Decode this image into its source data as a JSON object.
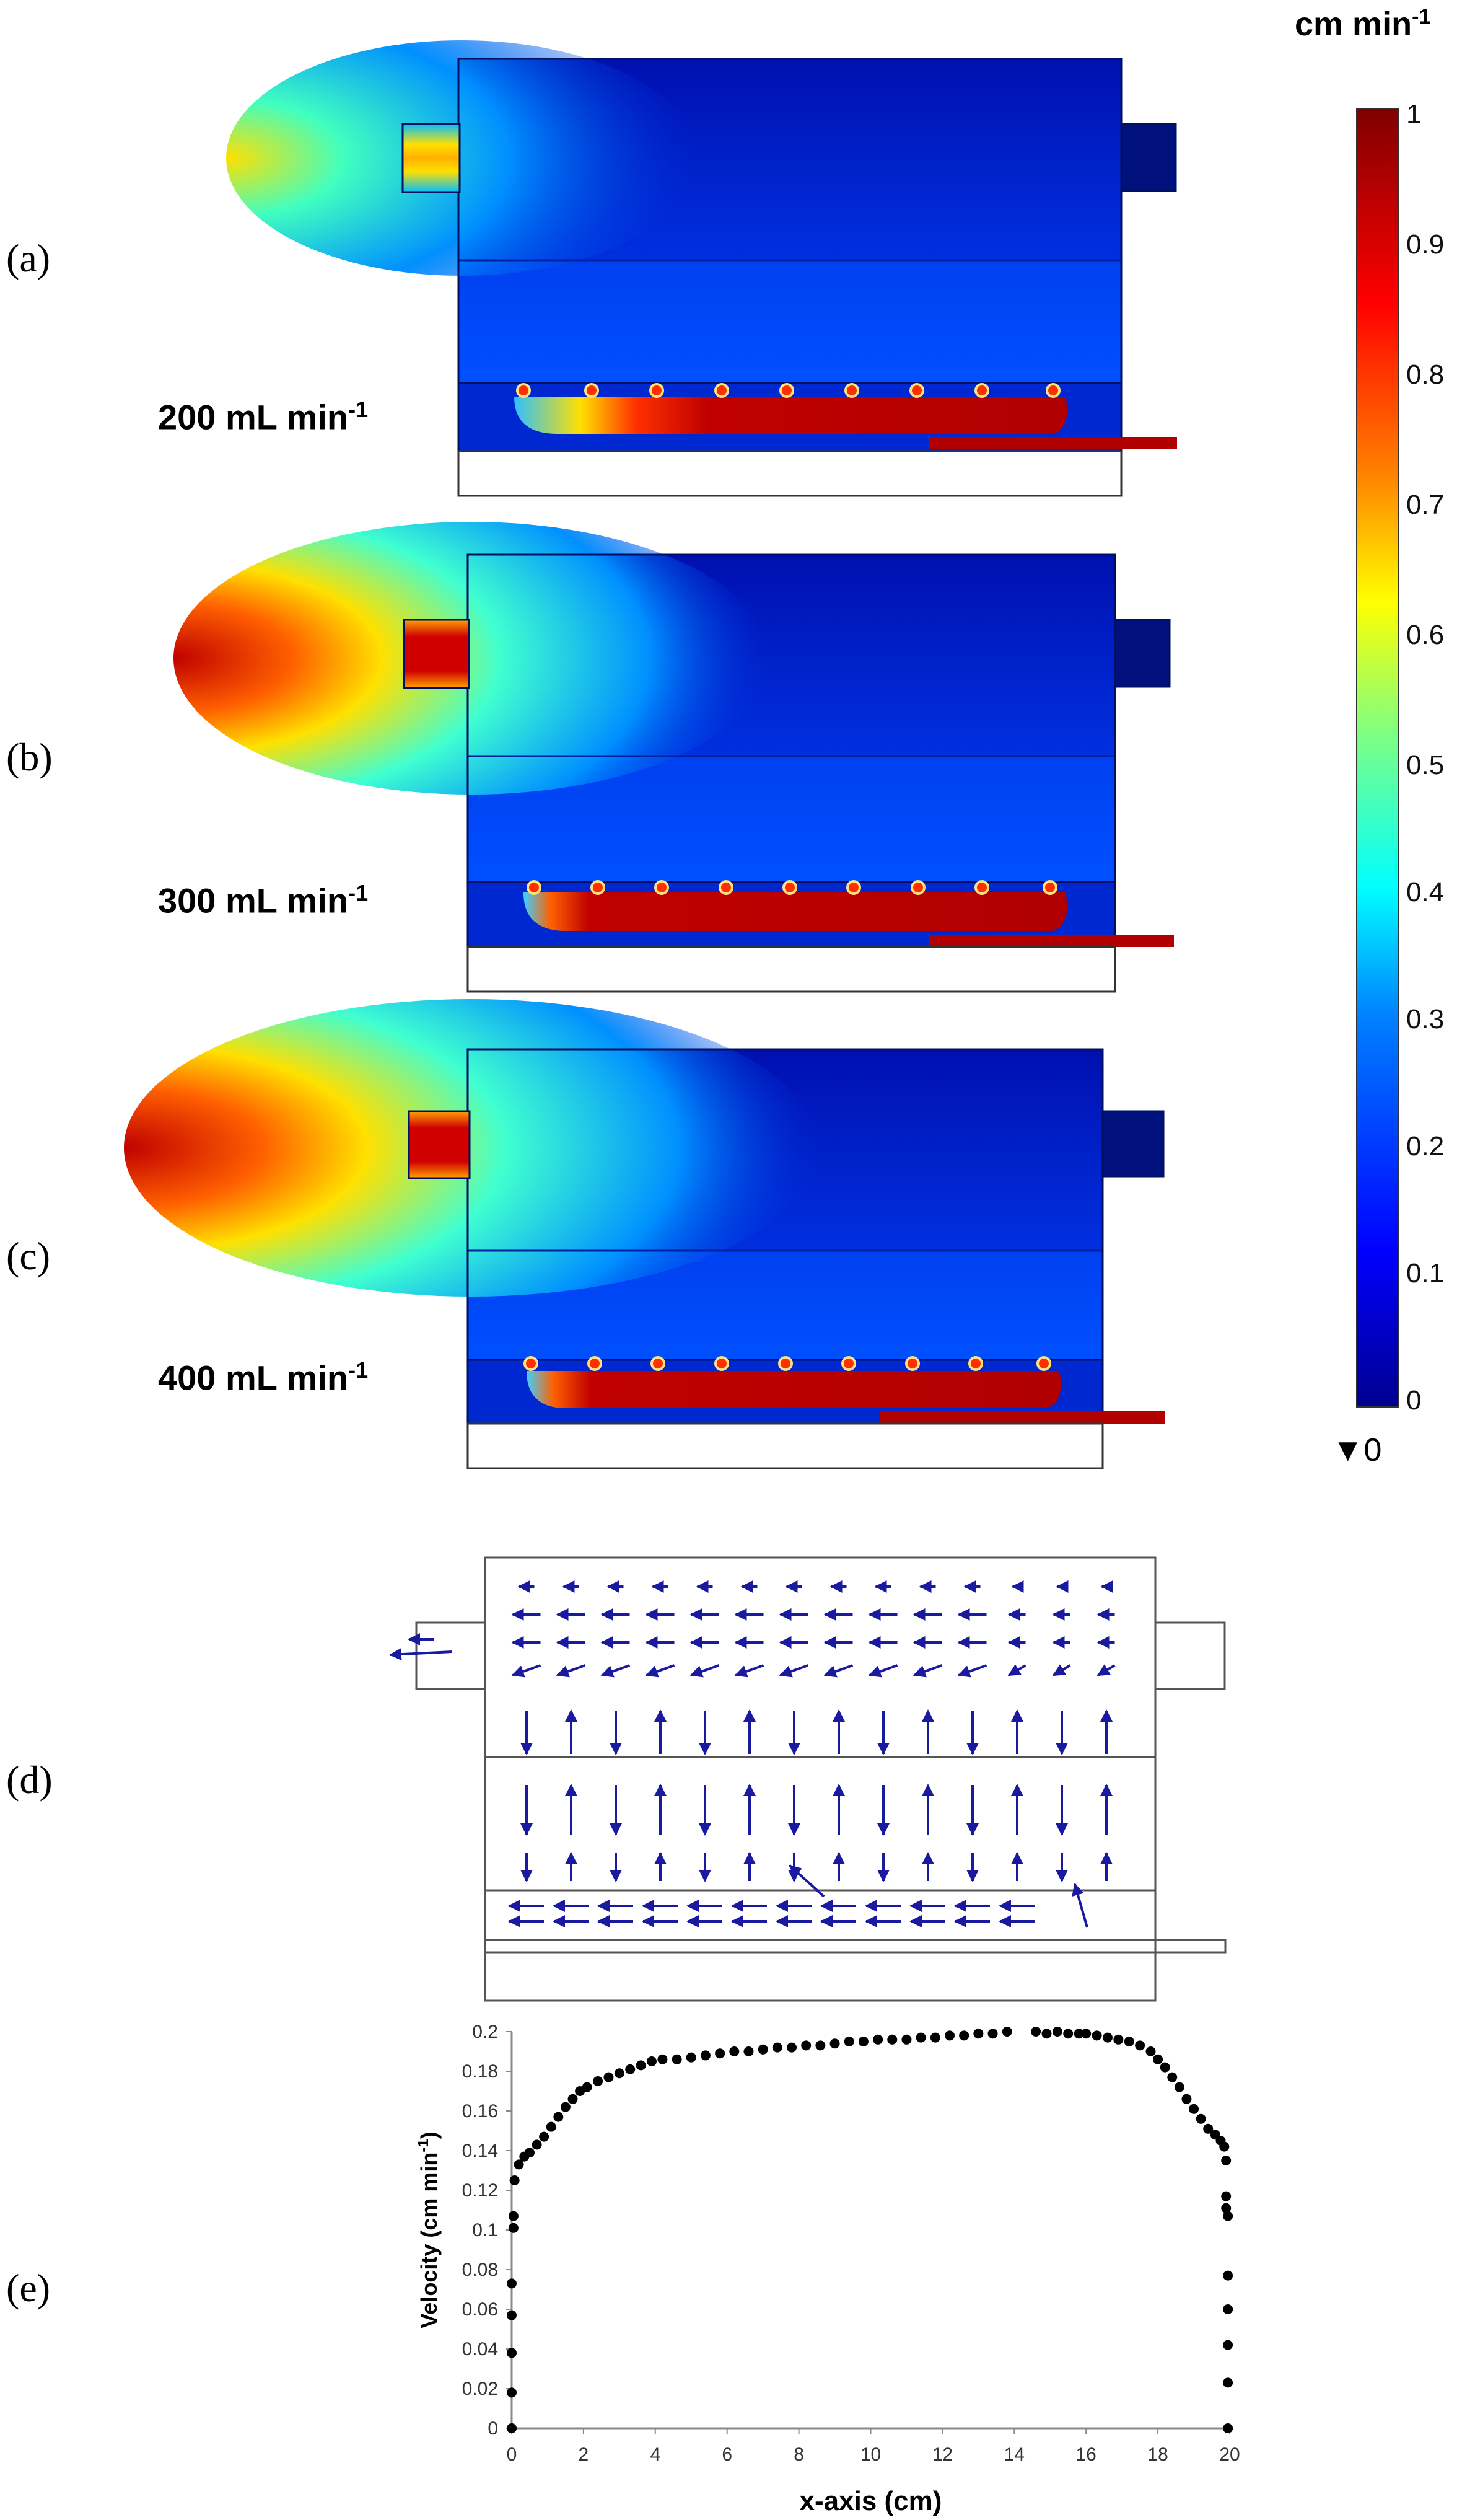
{
  "panel_letters": [
    "(a)",
    "(b)",
    "(c)",
    "(d)",
    "(e)"
  ],
  "flow_labels": [
    {
      "value": "200 mL min",
      "exp": "-1"
    },
    {
      "value": "300 mL min",
      "exp": "-1"
    },
    {
      "value": "400 mL min",
      "exp": "-1"
    }
  ],
  "colorbar": {
    "title": "cm min",
    "title_exp": "-1",
    "min": 0,
    "max": 1,
    "ticks": [
      "1",
      "0.9",
      "0.8",
      "0.7",
      "0.6",
      "0.5",
      "0.4",
      "0.3",
      "0.2",
      "0.1",
      "0"
    ],
    "min_marker": "▼0",
    "colors": [
      "#00008f",
      "#0000ff",
      "#0080ff",
      "#00ffff",
      "#80ff80",
      "#ffff00",
      "#ff8000",
      "#ff0000",
      "#800000"
    ]
  },
  "vector_field": {
    "arrow_color": "#1a1aa0"
  },
  "chart_data": {
    "type": "scatter",
    "xlabel": "x-axis (cm)",
    "ylabel": "Velocity (cm min",
    "ylabel_exp": "-1",
    "ylabel_close": ")",
    "xlim": [
      0,
      20
    ],
    "ylim": [
      0,
      0.2
    ],
    "xticks": [
      0,
      2,
      4,
      6,
      8,
      10,
      12,
      14,
      16,
      18,
      20
    ],
    "yticks": [
      0,
      0.02,
      0.04,
      0.06,
      0.08,
      0.1,
      0.12,
      0.14,
      0.16,
      0.18,
      0.2
    ],
    "ytick_labels": [
      "0",
      "0.02",
      "0.04",
      "0.06",
      "0.08",
      "0.1",
      "0.12",
      "0.14",
      "0.16",
      "0.18",
      "0.2"
    ],
    "grid": false,
    "points": [
      [
        0.0,
        0.0
      ],
      [
        0.0,
        0.018
      ],
      [
        0.0,
        0.038
      ],
      [
        0.0,
        0.057
      ],
      [
        0.0,
        0.073
      ],
      [
        0.05,
        0.101
      ],
      [
        0.05,
        0.107
      ],
      [
        0.08,
        0.125
      ],
      [
        0.2,
        0.133
      ],
      [
        0.35,
        0.137
      ],
      [
        0.5,
        0.139
      ],
      [
        0.7,
        0.143
      ],
      [
        0.9,
        0.147
      ],
      [
        1.1,
        0.152
      ],
      [
        1.3,
        0.157
      ],
      [
        1.5,
        0.162
      ],
      [
        1.7,
        0.166
      ],
      [
        1.9,
        0.17
      ],
      [
        2.1,
        0.172
      ],
      [
        2.4,
        0.175
      ],
      [
        2.7,
        0.177
      ],
      [
        3.0,
        0.179
      ],
      [
        3.3,
        0.181
      ],
      [
        3.6,
        0.183
      ],
      [
        3.9,
        0.185
      ],
      [
        4.2,
        0.186
      ],
      [
        4.6,
        0.186
      ],
      [
        5.0,
        0.187
      ],
      [
        5.4,
        0.188
      ],
      [
        5.8,
        0.189
      ],
      [
        6.2,
        0.19
      ],
      [
        6.6,
        0.19
      ],
      [
        7.0,
        0.191
      ],
      [
        7.4,
        0.192
      ],
      [
        7.8,
        0.192
      ],
      [
        8.2,
        0.193
      ],
      [
        8.6,
        0.193
      ],
      [
        9.0,
        0.194
      ],
      [
        9.4,
        0.195
      ],
      [
        9.8,
        0.195
      ],
      [
        10.2,
        0.196
      ],
      [
        10.6,
        0.196
      ],
      [
        11.0,
        0.196
      ],
      [
        11.4,
        0.197
      ],
      [
        11.8,
        0.197
      ],
      [
        12.2,
        0.198
      ],
      [
        12.6,
        0.198
      ],
      [
        13.0,
        0.199
      ],
      [
        13.4,
        0.199
      ],
      [
        13.8,
        0.2
      ],
      [
        14.6,
        0.2
      ],
      [
        14.9,
        0.199
      ],
      [
        15.2,
        0.2
      ],
      [
        15.5,
        0.199
      ],
      [
        15.8,
        0.199
      ],
      [
        16.0,
        0.199
      ],
      [
        16.3,
        0.198
      ],
      [
        16.6,
        0.197
      ],
      [
        16.9,
        0.196
      ],
      [
        17.2,
        0.195
      ],
      [
        17.5,
        0.193
      ],
      [
        17.8,
        0.19
      ],
      [
        18.0,
        0.186
      ],
      [
        18.2,
        0.182
      ],
      [
        18.4,
        0.177
      ],
      [
        18.6,
        0.172
      ],
      [
        18.8,
        0.166
      ],
      [
        19.0,
        0.161
      ],
      [
        19.2,
        0.156
      ],
      [
        19.4,
        0.151
      ],
      [
        19.6,
        0.148
      ],
      [
        19.75,
        0.145
      ],
      [
        19.85,
        0.142
      ],
      [
        19.9,
        0.135
      ],
      [
        19.9,
        0.117
      ],
      [
        19.9,
        0.111
      ],
      [
        19.95,
        0.107
      ],
      [
        19.95,
        0.077
      ],
      [
        19.95,
        0.06
      ],
      [
        19.95,
        0.042
      ],
      [
        19.95,
        0.023
      ],
      [
        19.95,
        0.0
      ]
    ]
  }
}
